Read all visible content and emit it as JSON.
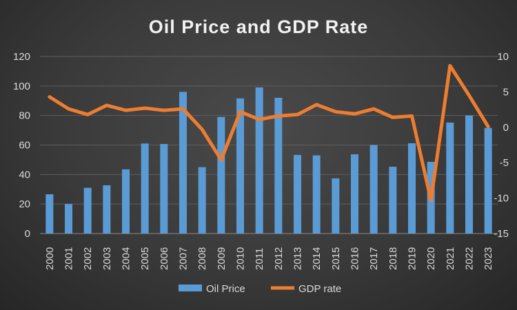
{
  "chart_data": {
    "type": "bar+line",
    "title": "Oil Price and GDP Rate",
    "categories": [
      "2000",
      "2001",
      "2002",
      "2003",
      "2004",
      "2005",
      "2006",
      "2007",
      "2008",
      "2009",
      "2010",
      "2011",
      "2012",
      "2013",
      "2014",
      "2015",
      "2016",
      "2017",
      "2018",
      "2019",
      "2020",
      "2021",
      "2022",
      "2023"
    ],
    "series": [
      {
        "name": "Oil Price",
        "type": "bar",
        "axis": "left",
        "color": "#5b9bd5",
        "values": [
          26.6,
          20,
          31,
          32.7,
          43.5,
          61,
          60.7,
          96,
          45,
          79,
          91.6,
          99,
          92,
          53.3,
          53,
          37.4,
          53.7,
          60,
          45.3,
          61.2,
          48.6,
          75.2,
          80,
          71.6
        ]
      },
      {
        "name": "GDP rate",
        "type": "line",
        "axis": "right",
        "color": "#ed7d31",
        "values": [
          4.3,
          2.6,
          1.8,
          3.1,
          2.4,
          2.7,
          2.4,
          2.6,
          -0.3,
          -4.6,
          2.2,
          1.1,
          1.6,
          1.8,
          3.2,
          2.2,
          1.9,
          2.6,
          1.4,
          1.6,
          -10.3,
          8.7,
          4.5,
          0.1
        ]
      }
    ],
    "y_left": {
      "range": [
        0,
        120
      ],
      "ticks": [
        "0",
        "20",
        "40",
        "60",
        "80",
        "100",
        "120"
      ]
    },
    "y_right": {
      "range": [
        -15,
        10
      ],
      "ticks": [
        "-15",
        "-10",
        "-5",
        "0",
        "5",
        "10"
      ]
    },
    "grid": true,
    "legend": "bottom"
  }
}
